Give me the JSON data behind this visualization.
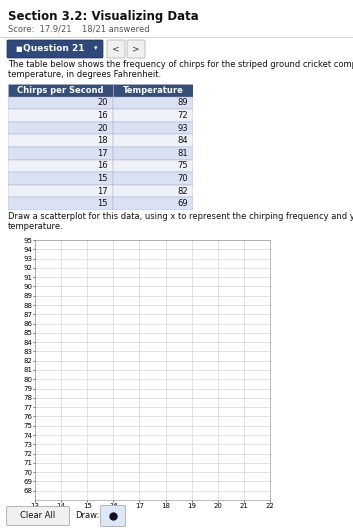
{
  "title": "Section 3.2: Visualizing Data",
  "score_text": "Score:  17.9/21    18/21 answered",
  "question_label": "Question 21",
  "intro_text": "The table below shows the frequency of chirps for the striped ground cricket compared to the ambient\ntemperature, in degrees Fahrenheit.",
  "table_headers": [
    "Chirps per Second",
    "Temperature"
  ],
  "table_data": [
    [
      20,
      89
    ],
    [
      16,
      72
    ],
    [
      20,
      93
    ],
    [
      18,
      84
    ],
    [
      17,
      81
    ],
    [
      16,
      75
    ],
    [
      15,
      70
    ],
    [
      17,
      82
    ],
    [
      15,
      69
    ]
  ],
  "scatter_instruction": "Draw a scatterplot for this data, using x to represent the chirping frequency and y to represent\ntemperature.",
  "x_min": 13,
  "x_max": 22,
  "y_min": 67,
  "y_max": 95,
  "x_ticks": [
    13,
    14,
    15,
    16,
    17,
    18,
    19,
    20,
    21,
    22
  ],
  "y_ticks": [
    68,
    69,
    70,
    71,
    72,
    73,
    74,
    75,
    76,
    77,
    78,
    79,
    80,
    81,
    82,
    83,
    84,
    85,
    86,
    87,
    88,
    89,
    90,
    91,
    92,
    93,
    94,
    95
  ],
  "bg_color": "#ffffff",
  "grid_color": "#cccccc",
  "header_bg": "#354f78",
  "header_fg": "#ffffff",
  "row_bg_odd": "#d9e1f2",
  "row_bg_even": "#eef1f8",
  "table_border": "#8899bb",
  "nav_bg": "#2e4a7a",
  "nav_border": "#1a3060",
  "btn_bg": "#f0f0f0",
  "btn_border": "#aaaaaa",
  "dot_btn_bg": "#dce8f5",
  "dot_color": "#111122",
  "title_fontsize": 8.5,
  "score_fontsize": 6.0,
  "nav_fontsize": 6.5,
  "intro_fontsize": 6.0,
  "table_fontsize": 6.0,
  "inst_fontsize": 6.0,
  "tick_fontsize": 5.0,
  "btn_fontsize": 6.0
}
